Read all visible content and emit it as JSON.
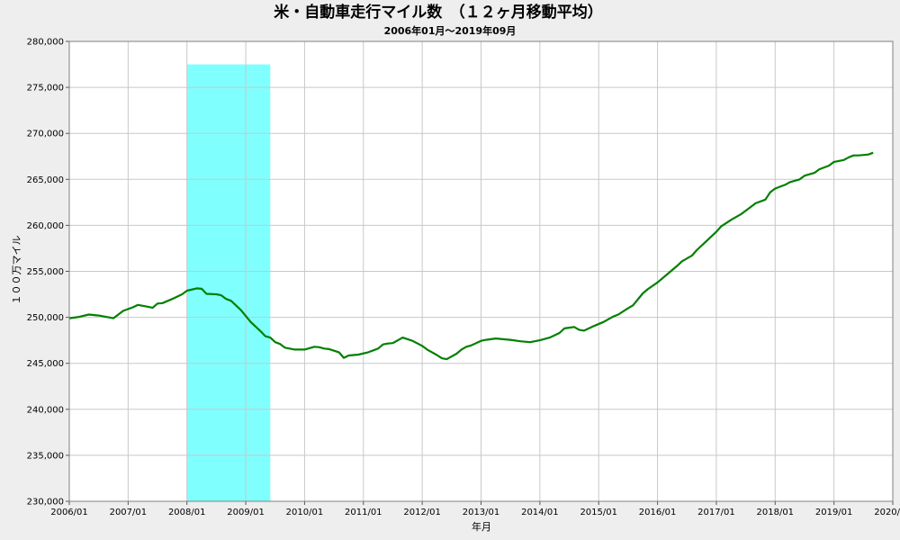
{
  "chart_data": {
    "type": "line",
    "title": "米・自動車走行マイル数　（１２ヶ月移動平均）",
    "subtitle": "2006年01月～2019年09月",
    "xlabel": "年月",
    "ylabel": "１００万マイル",
    "xlim": [
      "2006-01",
      "2020-01"
    ],
    "ylim": [
      230000,
      280000
    ],
    "y_ticks": [
      {
        "value": 230000,
        "label": "230,000"
      },
      {
        "value": 235000,
        "label": "235,000"
      },
      {
        "value": 240000,
        "label": "240,000"
      },
      {
        "value": 245000,
        "label": "245,000"
      },
      {
        "value": 250000,
        "label": "250,000"
      },
      {
        "value": 255000,
        "label": "255,000"
      },
      {
        "value": 260000,
        "label": "260,000"
      },
      {
        "value": 265000,
        "label": "265,000"
      },
      {
        "value": 270000,
        "label": "270,000"
      },
      {
        "value": 275000,
        "label": "275,000"
      },
      {
        "value": 280000,
        "label": "280,000"
      }
    ],
    "x_ticks": [
      {
        "value": "2006-01",
        "label": "2006/01"
      },
      {
        "value": "2007-01",
        "label": "2007/01"
      },
      {
        "value": "2008-01",
        "label": "2008/01"
      },
      {
        "value": "2009-01",
        "label": "2009/01"
      },
      {
        "value": "2010-01",
        "label": "2010/01"
      },
      {
        "value": "2011-01",
        "label": "2011/01"
      },
      {
        "value": "2012-01",
        "label": "2012/01"
      },
      {
        "value": "2013-01",
        "label": "2013/01"
      },
      {
        "value": "2014-01",
        "label": "2014/01"
      },
      {
        "value": "2015-01",
        "label": "2015/01"
      },
      {
        "value": "2016-01",
        "label": "2016/01"
      },
      {
        "value": "2017-01",
        "label": "2017/01"
      },
      {
        "value": "2018-01",
        "label": "2018/01"
      },
      {
        "value": "2019-01",
        "label": "2019/01"
      },
      {
        "value": "2020-01",
        "label": "2020/01"
      }
    ],
    "grid": true,
    "shaded_band": {
      "start": "2008-01",
      "end": "2009-06",
      "top": 277500,
      "color": "#80ffff"
    },
    "series": [
      {
        "color": "#008000",
        "points": [
          [
            "2006-01",
            249900
          ],
          [
            "2006-03",
            250050
          ],
          [
            "2006-05",
            250300
          ],
          [
            "2006-07",
            250200
          ],
          [
            "2006-09",
            250000
          ],
          [
            "2006-10",
            249900
          ],
          [
            "2006-12",
            250700
          ],
          [
            "2007-02",
            251100
          ],
          [
            "2007-03",
            251350
          ],
          [
            "2007-05",
            251150
          ],
          [
            "2007-06",
            251050
          ],
          [
            "2007-07",
            251500
          ],
          [
            "2007-08",
            251550
          ],
          [
            "2007-10",
            252000
          ],
          [
            "2007-12",
            252500
          ],
          [
            "2008-01",
            252900
          ],
          [
            "2008-03",
            253150
          ],
          [
            "2008-04",
            253100
          ],
          [
            "2008-05",
            252550
          ],
          [
            "2008-07",
            252500
          ],
          [
            "2008-08",
            252400
          ],
          [
            "2008-09",
            252000
          ],
          [
            "2008-10",
            251800
          ],
          [
            "2008-12",
            250800
          ],
          [
            "2009-02",
            249500
          ],
          [
            "2009-04",
            248500
          ],
          [
            "2009-05",
            247950
          ],
          [
            "2009-06",
            247800
          ],
          [
            "2009-07",
            247300
          ],
          [
            "2009-08",
            247100
          ],
          [
            "2009-09",
            246700
          ],
          [
            "2009-11",
            246500
          ],
          [
            "2010-01",
            246500
          ],
          [
            "2010-03",
            246800
          ],
          [
            "2010-04",
            246750
          ],
          [
            "2010-05",
            246600
          ],
          [
            "2010-06",
            246550
          ],
          [
            "2010-08",
            246200
          ],
          [
            "2010-09",
            245600
          ],
          [
            "2010-10",
            245850
          ],
          [
            "2010-12",
            245950
          ],
          [
            "2011-02",
            246200
          ],
          [
            "2011-04",
            246600
          ],
          [
            "2011-05",
            247050
          ],
          [
            "2011-06",
            247150
          ],
          [
            "2011-07",
            247200
          ],
          [
            "2011-09",
            247800
          ],
          [
            "2011-11",
            247450
          ],
          [
            "2012-01",
            246900
          ],
          [
            "2012-02",
            246500
          ],
          [
            "2012-04",
            245900
          ],
          [
            "2012-05",
            245550
          ],
          [
            "2012-06",
            245450
          ],
          [
            "2012-08",
            246050
          ],
          [
            "2012-09",
            246500
          ],
          [
            "2012-10",
            246800
          ],
          [
            "2012-11",
            246950
          ],
          [
            "2013-01",
            247450
          ],
          [
            "2013-02",
            247550
          ],
          [
            "2013-04",
            247700
          ],
          [
            "2013-05",
            247650
          ],
          [
            "2013-06",
            247600
          ],
          [
            "2013-07",
            247550
          ],
          [
            "2013-09",
            247400
          ],
          [
            "2013-11",
            247300
          ],
          [
            "2014-01",
            247500
          ],
          [
            "2014-03",
            247800
          ],
          [
            "2014-05",
            248300
          ],
          [
            "2014-06",
            248800
          ],
          [
            "2014-08",
            248950
          ],
          [
            "2014-09",
            248650
          ],
          [
            "2014-10",
            248550
          ],
          [
            "2014-12",
            249050
          ],
          [
            "2015-02",
            249500
          ],
          [
            "2015-04",
            250100
          ],
          [
            "2015-05",
            250300
          ],
          [
            "2015-07",
            251000
          ],
          [
            "2015-08",
            251300
          ],
          [
            "2015-10",
            252600
          ],
          [
            "2015-11",
            253050
          ],
          [
            "2016-01",
            253800
          ],
          [
            "2016-03",
            254700
          ],
          [
            "2016-05",
            255600
          ],
          [
            "2016-06",
            256100
          ],
          [
            "2016-08",
            256700
          ],
          [
            "2016-09",
            257300
          ],
          [
            "2016-11",
            258300
          ],
          [
            "2017-01",
            259300
          ],
          [
            "2017-02",
            259900
          ],
          [
            "2017-04",
            260600
          ],
          [
            "2017-06",
            261200
          ],
          [
            "2017-08",
            262000
          ],
          [
            "2017-09",
            262400
          ],
          [
            "2017-11",
            262800
          ],
          [
            "2017-12",
            263600
          ],
          [
            "2018-01",
            264000
          ],
          [
            "2018-03",
            264400
          ],
          [
            "2018-04",
            264700
          ],
          [
            "2018-06",
            265000
          ],
          [
            "2018-07",
            265400
          ],
          [
            "2018-09",
            265700
          ],
          [
            "2018-10",
            266100
          ],
          [
            "2018-12",
            266500
          ],
          [
            "2019-01",
            266900
          ],
          [
            "2019-03",
            267100
          ],
          [
            "2019-04",
            267400
          ],
          [
            "2019-05",
            267600
          ],
          [
            "2019-06",
            267600
          ],
          [
            "2019-08",
            267700
          ],
          [
            "2019-09",
            267900
          ]
        ]
      }
    ]
  }
}
